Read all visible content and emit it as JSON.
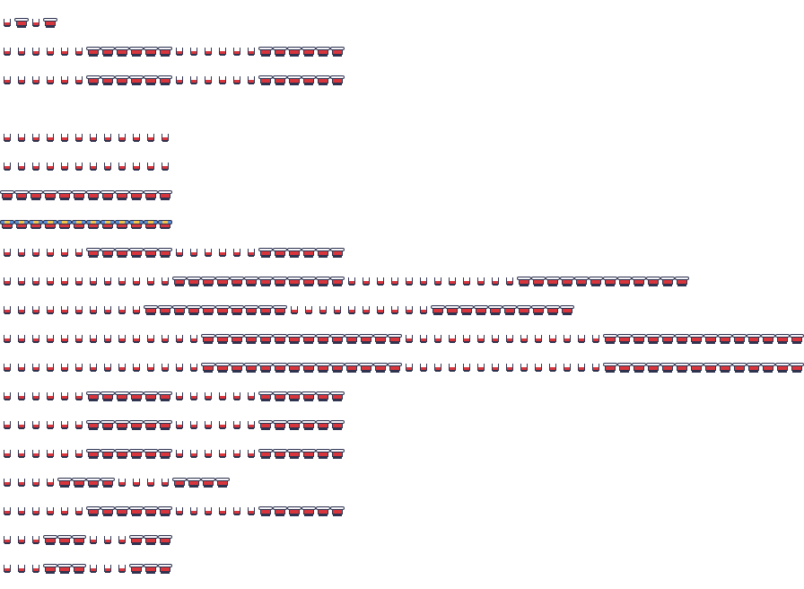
{
  "sprite_sheet": {
    "colors": {
      "outline": "#2e3450",
      "white": "#ffffff",
      "lid": "#f4f4f8",
      "red": "#d8353c",
      "blue": "#5a8fd8",
      "gold": "#f2c34a",
      "background": "#ffffff"
    },
    "rows": [
      {
        "pattern": "swsw"
      },
      {
        "pattern": "sssssswwwwwwsssssswwwwww"
      },
      {
        "pattern": "sssssswwwwwwsssssswwwwww"
      },
      {
        "pattern": ""
      },
      {
        "pattern": "ssssssssssss"
      },
      {
        "pattern": "ssssssssssss"
      },
      {
        "pattern": "wwwwwwwwwwww"
      },
      {
        "pattern": "bbbbbbbbbbbb"
      },
      {
        "pattern": "sssssswwwwwwsssssswwwwww"
      },
      {
        "pattern": "sssssssssssswwwwwwwwwwwwsssssssssssswwwwwwwwwwww"
      },
      {
        "pattern": "sssssssssswwwwwwwwwwsssssssssswwwwwwwwww"
      },
      {
        "pattern": "sssssssssssssswwwwwwwwwwwwwwsssssssssssssswwwwwwwwwwwwww"
      },
      {
        "pattern": "sssssssssssssswwwwwwwwwwwwwwsssssssssssssswwwwwwwwwwwwww"
      },
      {
        "pattern": "sssssswwwwwwsssssswwwwww"
      },
      {
        "pattern": "sssssswwwwwwsssssswwwwww"
      },
      {
        "pattern": "sssssswwwwwwsssssswwwwww"
      },
      {
        "pattern": "sssswwwwsssswwww"
      },
      {
        "pattern": "sssssswwwwwwsssssswwwwww"
      },
      {
        "pattern": "ssswwwssswww"
      },
      {
        "pattern": "ssswwwssswww"
      }
    ]
  }
}
